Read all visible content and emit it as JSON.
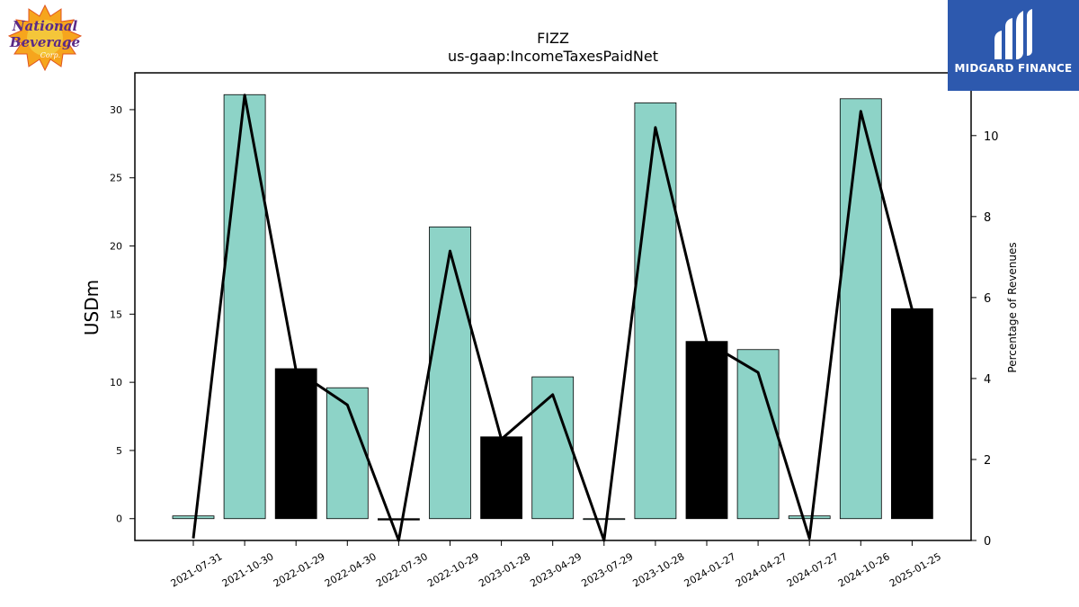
{
  "header": {
    "title": "FIZZ",
    "subtitle": "us-gaap:IncomeTaxesPaidNet"
  },
  "logos": {
    "left_logo_text": "National Beverage Corp.",
    "right_brand": "MIDGARD FINANCE",
    "right_brand_color": "#2d59ae"
  },
  "chart_data": {
    "type": "bar",
    "title": "FIZZ",
    "subtitle": "us-gaap:IncomeTaxesPaidNet",
    "ylabel": "USDm",
    "y2label": "Percentage of Revenues",
    "ylim": [
      -1.6,
      32.7
    ],
    "y2lim": [
      0,
      11.55
    ],
    "yticks": [
      0,
      5,
      10,
      15,
      20,
      25,
      30
    ],
    "y2ticks": [
      0,
      2,
      4,
      6,
      8,
      10
    ],
    "categories": [
      "2021-07-31",
      "2021-10-30",
      "2022-01-29",
      "2022-04-30",
      "2022-07-30",
      "2022-10-29",
      "2023-01-28",
      "2023-04-29",
      "2023-07-29",
      "2023-10-28",
      "2024-01-27",
      "2024-04-27",
      "2024-07-27",
      "2024-10-26",
      "2025-01-25"
    ],
    "series": [
      {
        "type": "bar",
        "axis": "left",
        "values": [
          0.2,
          31.1,
          11.0,
          9.6,
          -0.1,
          21.4,
          6.0,
          10.4,
          0.0,
          30.5,
          13.0,
          12.4,
          0.2,
          30.8,
          15.4
        ],
        "bar_colors": [
          "#8dd3c7",
          "#8dd3c7",
          "#000000",
          "#8dd3c7",
          "#000000",
          "#8dd3c7",
          "#000000",
          "#8dd3c7",
          "#8dd3c7",
          "#8dd3c7",
          "#000000",
          "#8dd3c7",
          "#8dd3c7",
          "#8dd3c7",
          "#000000"
        ]
      },
      {
        "type": "line",
        "axis": "right",
        "values": [
          0.05,
          11.0,
          4.2,
          3.35,
          0.0,
          7.15,
          2.5,
          3.6,
          0.0,
          10.2,
          4.9,
          4.15,
          0.05,
          10.6,
          5.7
        ],
        "color": "#000000"
      }
    ],
    "grid": false,
    "legend": "none"
  }
}
